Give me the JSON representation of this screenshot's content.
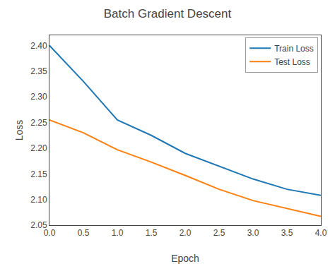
{
  "chart_data": {
    "type": "line",
    "title": "Batch Gradient Descent",
    "x_label": "Epoch",
    "y_label": "Loss",
    "x": [
      0.0,
      0.5,
      1.0,
      1.5,
      2.0,
      2.5,
      3.0,
      3.5,
      4.0
    ],
    "series": [
      {
        "name": "Train Loss",
        "color": "#1f77b4",
        "values": [
          2.4,
          2.33,
          2.255,
          2.225,
          2.19,
          2.165,
          2.14,
          2.12,
          2.108
        ]
      },
      {
        "name": "Test Loss",
        "color": "#ff7f0e",
        "values": [
          2.255,
          2.23,
          2.197,
          2.173,
          2.147,
          2.12,
          2.098,
          2.083,
          2.067
        ]
      }
    ],
    "xlim": [
      0,
      4
    ],
    "ylim": [
      2.05,
      2.42
    ],
    "xticks": [
      {
        "value": 0,
        "label": "0.0"
      },
      0.5,
      {
        "value": 1.0,
        "label": "1.0"
      },
      1.5,
      {
        "value": 2.0,
        "label": "2.0"
      },
      2.5,
      {
        "value": 3.0,
        "label": "3.0"
      },
      3.5,
      {
        "value": 4.0,
        "label": "4.0"
      }
    ],
    "yticks": [
      2.05,
      {
        "value": 2.1,
        "label": "2.10"
      },
      2.15,
      {
        "value": 2.2,
        "label": "2.20"
      },
      2.25,
      {
        "value": 2.3,
        "label": "2.30"
      },
      2.35,
      {
        "value": 2.4,
        "label": "2.40"
      }
    ],
    "grid": false,
    "legend": "upper right"
  }
}
